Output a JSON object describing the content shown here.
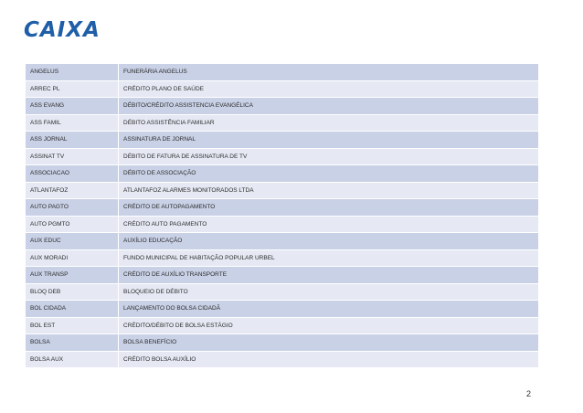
{
  "logo": {
    "main": "CAIXA"
  },
  "rows": [
    {
      "code": "ANGELUS",
      "desc": "FUNERÁRIA ANGELUS"
    },
    {
      "code": "ARREC PL",
      "desc": "CRÉDITO PLANO DE SAÚDE"
    },
    {
      "code": "ASS EVANG",
      "desc": "DÉBITO/CRÉDITO ASSISTENCIA EVANGÉLICA"
    },
    {
      "code": "ASS FAMIL",
      "desc": "DÉBITO ASSISTÊNCIA FAMILIAR"
    },
    {
      "code": "ASS JORNAL",
      "desc": "ASSINATURA DE JORNAL"
    },
    {
      "code": "ASSINAT TV",
      "desc": "DÉBITO DE FATURA DE ASSINATURA DE TV"
    },
    {
      "code": "ASSOCIACAO",
      "desc": "DÉBITO DE ASSOCIAÇÃO"
    },
    {
      "code": "ATLANTAFOZ",
      "desc": "ATLANTAFOZ ALARMES MONITORADOS LTDA"
    },
    {
      "code": "AUTO PAGTO",
      "desc": "CRÉDITO DE AUTOPAGAMENTO"
    },
    {
      "code": "AUTO PGMTO",
      "desc": "CRÉDITO AUTO PAGAMENTO"
    },
    {
      "code": "AUX EDUC",
      "desc": "AUXÍLIO EDUCAÇÃO"
    },
    {
      "code": "AUX MORADI",
      "desc": "FUNDO MUNICIPAL DE HABITAÇÃO POPULAR URBEL"
    },
    {
      "code": "AUX TRANSP",
      "desc": "CRÉDITO DE AUXÍLIO TRANSPORTE"
    },
    {
      "code": "BLOQ DEB",
      "desc": "BLOQUEIO DE DÉBITO"
    },
    {
      "code": "BOL CIDADA",
      "desc": "LANÇAMENTO DO BOLSA CIDADÃ"
    },
    {
      "code": "BOL EST",
      "desc": "CRÉDITO/DÉBITO DE BOLSA ESTÁGIO"
    },
    {
      "code": "BOLSA",
      "desc": "BOLSA BENEFÍCIO"
    },
    {
      "code": "BOLSA AUX",
      "desc": "CRÉDITO BOLSA AUXÍLIO"
    }
  ],
  "page_number": "2",
  "colors": {
    "brand_blue": "#1f5ea8",
    "brand_orange": "#f39200",
    "row_dark": "#c9d1e6",
    "row_light": "#e6e9f4"
  }
}
